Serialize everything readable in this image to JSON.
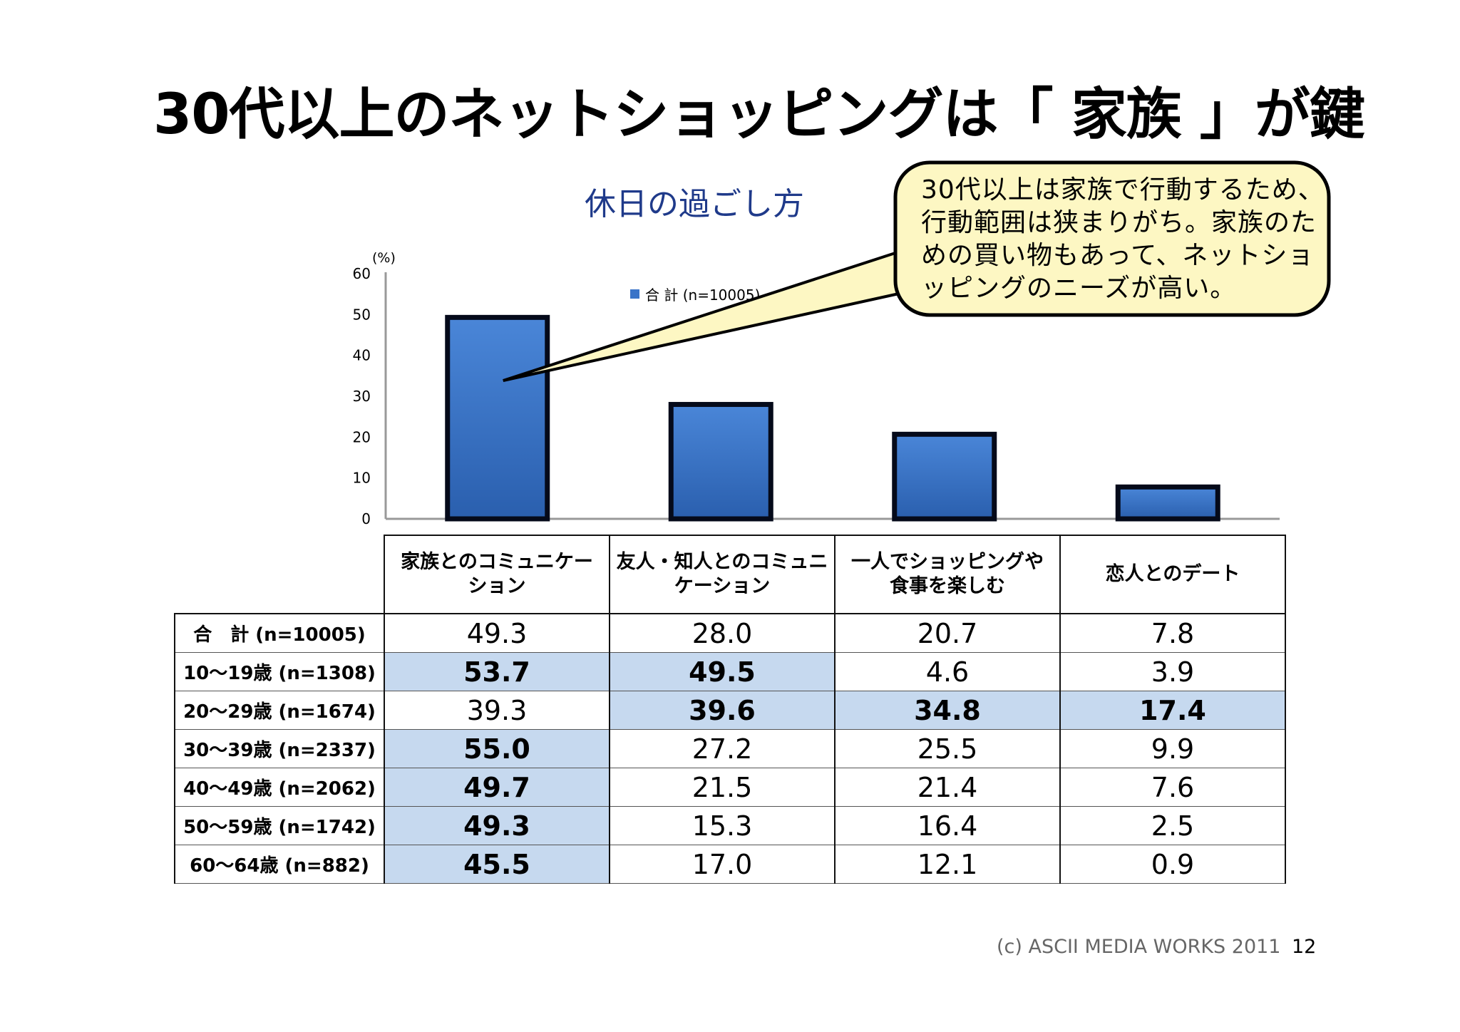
{
  "slide": {
    "title": "30代以上のネットショッピングは「 家族 」が鍵",
    "footer": "(c) ASCII MEDIA WORKS 2011",
    "page_number": "12"
  },
  "callout": {
    "text": "30代以上は家族で行動するため、行動範囲は狭まりがち。家族のための買い物もあって、ネットショッピングのニーズが高い。",
    "fill_color": "#fdf7c3"
  },
  "chart_data": {
    "type": "bar",
    "title": "休日の過ごし方",
    "unit_label": "(%)",
    "categories": [
      "家族とのコミュニケーション",
      "友人・知人とのコミュニケーション",
      "一人でショッピングや食事を楽しむ",
      "恋人とのデート"
    ],
    "series": [
      {
        "name": "合 計 (n=10005)",
        "values": [
          49.3,
          28.0,
          20.7,
          7.8
        ],
        "color": "#3a74c8"
      }
    ],
    "ylim": [
      0,
      60
    ],
    "yticks": [
      "0",
      "10",
      "20",
      "30",
      "40",
      "50",
      "60"
    ],
    "legend_position": "top-center"
  },
  "table": {
    "columns": [
      [
        "家族とのコミュニケー",
        "ション"
      ],
      [
        "友人・知人とのコミュニ",
        "ケーション"
      ],
      [
        "一人でショッピングや",
        "食事を楽しむ"
      ],
      [
        "恋人とのデート"
      ]
    ],
    "rows": [
      {
        "label": "合　計 (n=10005)",
        "values": [
          "49.3",
          "28.0",
          "20.7",
          "7.8"
        ],
        "highlight": [
          false,
          false,
          false,
          false
        ]
      },
      {
        "label": "10～19歳 (n=1308)",
        "values": [
          "53.7",
          "49.5",
          "4.6",
          "3.9"
        ],
        "highlight": [
          true,
          true,
          false,
          false
        ]
      },
      {
        "label": "20～29歳 (n=1674)",
        "values": [
          "39.3",
          "39.6",
          "34.8",
          "17.4"
        ],
        "highlight": [
          false,
          true,
          true,
          true
        ]
      },
      {
        "label": "30～39歳 (n=2337)",
        "values": [
          "55.0",
          "27.2",
          "25.5",
          "9.9"
        ],
        "highlight": [
          true,
          false,
          false,
          false
        ]
      },
      {
        "label": "40～49歳 (n=2062)",
        "values": [
          "49.7",
          "21.5",
          "21.4",
          "7.6"
        ],
        "highlight": [
          true,
          false,
          false,
          false
        ]
      },
      {
        "label": "50～59歳 (n=1742)",
        "values": [
          "49.3",
          "15.3",
          "16.4",
          "2.5"
        ],
        "highlight": [
          true,
          false,
          false,
          false
        ]
      },
      {
        "label": "60～64歳 (n=882)",
        "values": [
          "45.5",
          "17.0",
          "12.1",
          "0.9"
        ],
        "highlight": [
          true,
          false,
          false,
          false
        ]
      }
    ]
  }
}
